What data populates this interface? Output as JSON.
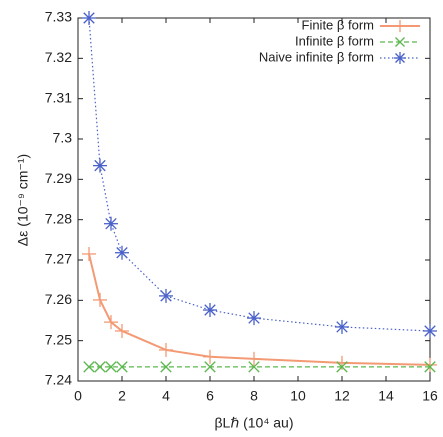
{
  "chart_data": {
    "type": "line",
    "x_label": "βLℏ (10⁴ au)",
    "y_label": "Δε (10⁻⁹ cm⁻¹)",
    "x": [
      0.5,
      1,
      1.5,
      2,
      4,
      6,
      8,
      12,
      16
    ],
    "series": [
      {
        "name": "Finite β form",
        "color": "#f39a74",
        "marker": "plus",
        "line": "solid",
        "values": [
          7.2715,
          7.2601,
          7.2546,
          7.2524,
          7.2477,
          7.246,
          7.2455,
          7.2445,
          7.244
        ]
      },
      {
        "name": "Infinite β form",
        "color": "#5cb84e",
        "marker": "cross",
        "line": "dashed",
        "values": [
          7.2435,
          7.2435,
          7.2435,
          7.2435,
          7.2435,
          7.2435,
          7.2435,
          7.2435,
          7.2435
        ]
      },
      {
        "name": "Naive infinite β form",
        "color": "#4a62c8",
        "marker": "star",
        "line": "dotted",
        "values": [
          7.33,
          7.2934,
          7.279,
          7.2718,
          7.2611,
          7.2576,
          7.2556,
          7.2534,
          7.2524
        ]
      }
    ],
    "xlim": [
      0,
      16
    ],
    "xticks": [
      0,
      2,
      4,
      6,
      8,
      10,
      12,
      14,
      16
    ],
    "ylim": [
      7.24,
      7.33
    ],
    "yticks": [
      7.24,
      7.25,
      7.26,
      7.27,
      7.28,
      7.29,
      {
        "value": 7.3,
        "label": "7.3"
      },
      7.31,
      7.32,
      7.33
    ],
    "legend": "top-right"
  }
}
